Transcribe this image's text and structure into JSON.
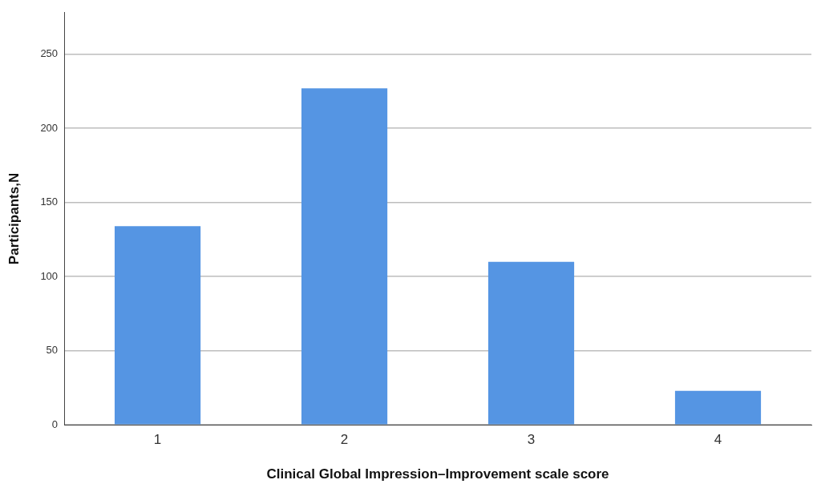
{
  "chart_data": {
    "type": "bar",
    "xlabel": "Clinical Global Impression–Improvement scale score",
    "ylabel": "Participants,N",
    "categories": [
      "1",
      "2",
      "3",
      "4"
    ],
    "values": [
      134,
      227,
      110,
      23
    ],
    "color": "#5595e3",
    "ylim": [
      0,
      278
    ],
    "yticks": [
      0,
      50,
      100,
      150,
      200,
      250
    ],
    "grid": "y"
  }
}
